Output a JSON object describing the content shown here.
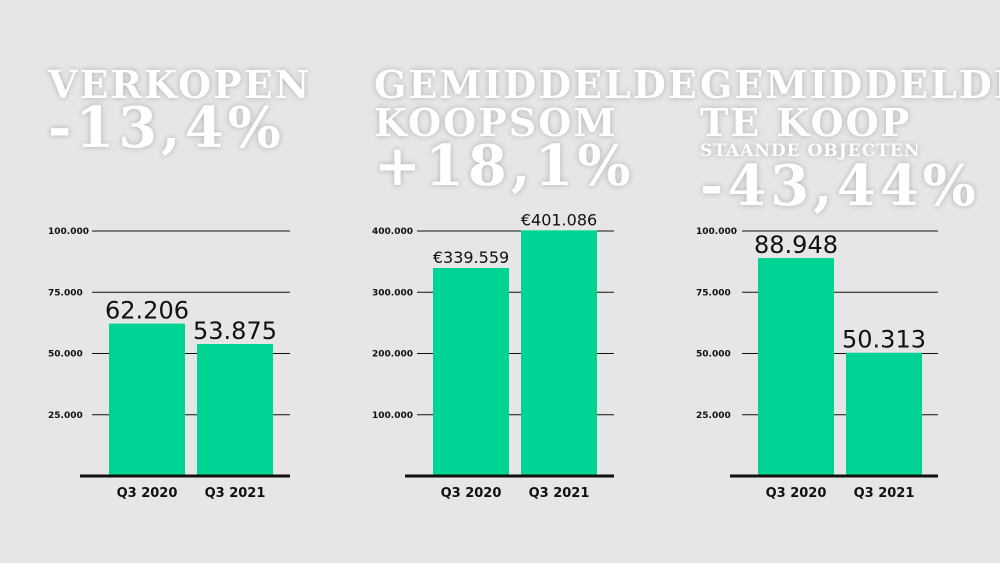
{
  "colors": {
    "bar": "#00d494",
    "background": "#e6e6e6",
    "headline": "#ffffff",
    "axis": "#111111"
  },
  "chart_data": [
    {
      "type": "bar",
      "title_lines": [
        "VERKOPEN"
      ],
      "change": "-13,4%",
      "categories": [
        "Q3 2020",
        "Q3 2021"
      ],
      "values": [
        62206,
        53875
      ],
      "value_labels": [
        "62.206",
        "53.875"
      ],
      "yticks": [
        25000,
        50000,
        75000,
        100000
      ],
      "ytick_labels": [
        "25.000",
        "50.000",
        "75.000",
        "100.000"
      ],
      "ylim": [
        0,
        100000
      ],
      "grid": true
    },
    {
      "type": "bar",
      "title_lines": [
        "GEMIDDELDE",
        "KOOPSOM"
      ],
      "change": "+18,1%",
      "categories": [
        "Q3 2020",
        "Q3 2021"
      ],
      "values": [
        339559,
        401086
      ],
      "value_labels": [
        "€339.559",
        "€401.086"
      ],
      "yticks": [
        100000,
        200000,
        300000,
        400000
      ],
      "ytick_labels": [
        "100.000",
        "200.000",
        "300.000",
        "400.000"
      ],
      "ylim": [
        0,
        400000
      ],
      "grid": true
    },
    {
      "type": "bar",
      "title_lines": [
        "GEMIDDELDE",
        "TE KOOP"
      ],
      "title_sub": "STAANDE OBJECTEN",
      "change": "-43,44%",
      "categories": [
        "Q3 2020",
        "Q3 2021"
      ],
      "values": [
        88948,
        50313
      ],
      "value_labels": [
        "88.948",
        "50.313"
      ],
      "yticks": [
        25000,
        50000,
        75000,
        100000
      ],
      "ytick_labels": [
        "25.000",
        "50.000",
        "75.000",
        "100.000"
      ],
      "ylim": [
        0,
        100000
      ],
      "grid": true
    }
  ]
}
